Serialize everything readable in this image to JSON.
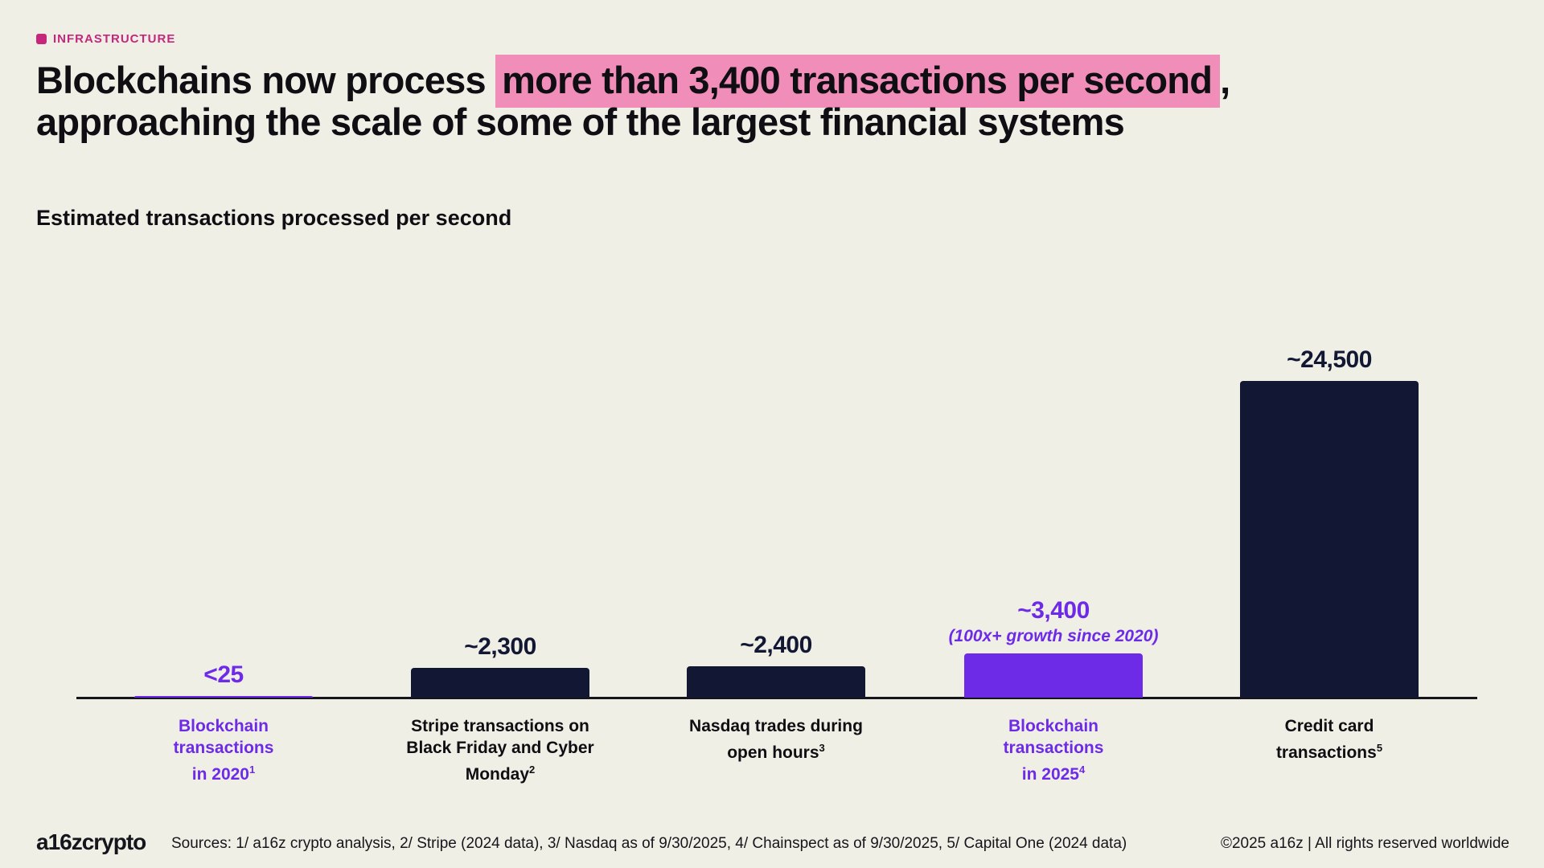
{
  "slide": {
    "bg_color": "#F0EFE6",
    "tag": {
      "label": "INFRASTRUCTURE",
      "color": "#C4277C"
    },
    "title": {
      "pre": "Blockchains now process ",
      "highlight": "more than 3,400 transactions per second",
      "post": ",",
      "line2": "approaching the scale of some of the largest financial systems",
      "text_color": "#0E0E13",
      "highlight_color": "#F18DB9"
    },
    "subtitle": "Estimated transactions processed per second"
  },
  "chart_data": {
    "type": "bar",
    "title": "Estimated transactions processed per second",
    "xlabel": "",
    "ylabel": "",
    "ylim": [
      0,
      25000
    ],
    "grid": false,
    "legend": false,
    "axis_color": "#15161C",
    "categories": [
      "Blockchain transactions in 2020¹",
      "Stripe transactions on Black Friday and Cyber Monday²",
      "Nasdaq trades during open hours³",
      "Blockchain transactions in 2025⁴",
      "Credit card transactions⁵"
    ],
    "values": [
      25,
      2300,
      2400,
      3400,
      24500
    ],
    "bars": [
      {
        "id": "blockchain-2020",
        "category_lines": [
          "Blockchain",
          "transactions",
          "in 2020"
        ],
        "footnote": "1",
        "value": 25,
        "value_label": "<25",
        "bar_color": "#6D2BE8",
        "value_color": "#6D2BE8",
        "label_color": "#6D2BE8"
      },
      {
        "id": "stripe-black-friday",
        "category_lines": [
          "Stripe transactions on",
          "Black Friday and Cyber",
          "Monday"
        ],
        "footnote": "2",
        "value": 2300,
        "value_label": "~2,300",
        "bar_color": "#121734",
        "value_color": "#121734",
        "label_color": "#0E0E13"
      },
      {
        "id": "nasdaq-open-hours",
        "category_lines": [
          "Nasdaq trades during",
          "open hours"
        ],
        "footnote": "3",
        "value": 2400,
        "value_label": "~2,400",
        "bar_color": "#121734",
        "value_color": "#121734",
        "label_color": "#0E0E13"
      },
      {
        "id": "blockchain-2025",
        "category_lines": [
          "Blockchain",
          "transactions",
          "in 2025"
        ],
        "footnote": "4",
        "value": 3400,
        "value_label": "~3,400",
        "annotation": "(100x+ growth since 2020)",
        "bar_color": "#6D2BE8",
        "value_color": "#6D2BE8",
        "label_color": "#6D2BE8"
      },
      {
        "id": "credit-card",
        "category_lines": [
          "Credit card",
          "transactions"
        ],
        "footnote": "5",
        "value": 24500,
        "value_label": "~24,500",
        "bar_color": "#121734",
        "value_color": "#121734",
        "label_color": "#0E0E13"
      }
    ]
  },
  "footer": {
    "logo": "a16zcrypto",
    "sources": "Sources: 1/ a16z crypto analysis, 2/ Stripe (2024 data), 3/ Nasdaq as of 9/30/2025, 4/ Chainspect as of 9/30/2025, 5/ Capital One (2024 data)",
    "copyright": "©2025 a16z | All rights reserved worldwide"
  }
}
